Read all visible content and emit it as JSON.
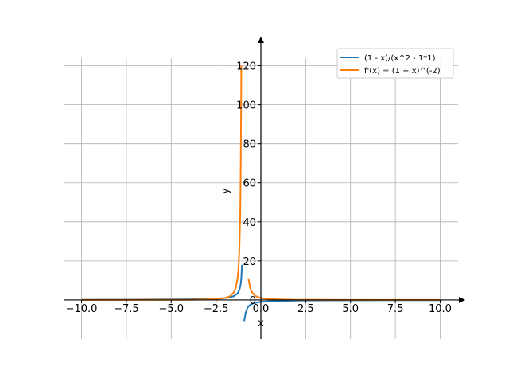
{
  "chart_data": {
    "type": "line",
    "title": "",
    "xlabel": "x",
    "ylabel": "y",
    "xlim": [
      -11,
      11
    ],
    "ylim": [
      -20,
      130
    ],
    "grid": true,
    "legend_position": "top-right",
    "x_ticks": [
      -10,
      -7.5,
      -5,
      -2.5,
      0,
      2.5,
      5,
      7.5,
      10
    ],
    "x_tick_labels": [
      "−10.0",
      "−7.5",
      "−5.0",
      "−2.5",
      "0.0",
      "2.5",
      "5.0",
      "7.5",
      "10.0"
    ],
    "y_ticks": [
      0,
      20,
      40,
      60,
      80,
      100,
      120
    ],
    "y_tick_labels": [
      "0",
      "20",
      "40",
      "60",
      "80",
      "100",
      "120"
    ],
    "series": [
      {
        "name": "(1 - x)/(x^2 - 1*1)",
        "color": "#1f77b4",
        "segments": [
          [
            [
              -10,
              0.11
            ],
            [
              -8,
              0.14
            ],
            [
              -6,
              0.2
            ],
            [
              -4,
              0.33
            ],
            [
              -3,
              0.5
            ],
            [
              -2.5,
              0.67
            ],
            [
              -2,
              1.0
            ],
            [
              -1.7,
              1.43
            ],
            [
              -1.5,
              2.0
            ],
            [
              -1.3,
              3.33
            ],
            [
              -1.2,
              5.0
            ],
            [
              -1.13,
              7.7
            ],
            [
              -1.09,
              11.0
            ],
            [
              -1.05,
              18.0
            ]
          ],
          [
            [
              -0.93,
              -10.8
            ],
            [
              -0.85,
              -6.7
            ],
            [
              -0.75,
              -4.0
            ],
            [
              -0.6,
              -2.5
            ],
            [
              -0.4,
              -1.67
            ],
            [
              -0.2,
              -1.25
            ],
            [
              0,
              -1.0
            ],
            [
              0.5,
              -0.67
            ],
            [
              1,
              -0.5
            ],
            [
              2,
              -0.33
            ],
            [
              3,
              -0.25
            ],
            [
              5,
              -0.17
            ],
            [
              7.5,
              -0.12
            ],
            [
              10,
              -0.09
            ]
          ]
        ]
      },
      {
        "name": "f'(x) = (1 + x)^(-2)",
        "color": "#ff7f0e",
        "segments": [
          [
            [
              -10,
              0.01
            ],
            [
              -8,
              0.02
            ],
            [
              -6,
              0.04
            ],
            [
              -4,
              0.11
            ],
            [
              -3,
              0.25
            ],
            [
              -2.5,
              0.44
            ],
            [
              -2,
              1.0
            ],
            [
              -1.7,
              2.04
            ],
            [
              -1.5,
              4.0
            ],
            [
              -1.4,
              6.25
            ],
            [
              -1.3,
              11.1
            ],
            [
              -1.25,
              16.0
            ],
            [
              -1.2,
              25.0
            ],
            [
              -1.15,
              44.4
            ],
            [
              -1.12,
              69.4
            ],
            [
              -1.1,
              100
            ],
            [
              -1.09,
              120
            ]
          ],
          [
            [
              -0.7,
              11.1
            ],
            [
              -0.6,
              6.25
            ],
            [
              -0.5,
              4.0
            ],
            [
              -0.3,
              2.04
            ],
            [
              0,
              1.0
            ],
            [
              0.5,
              0.44
            ],
            [
              1,
              0.25
            ],
            [
              2,
              0.11
            ],
            [
              3,
              0.06
            ],
            [
              5,
              0.03
            ],
            [
              7.5,
              0.01
            ],
            [
              10,
              0.01
            ]
          ]
        ]
      }
    ]
  }
}
